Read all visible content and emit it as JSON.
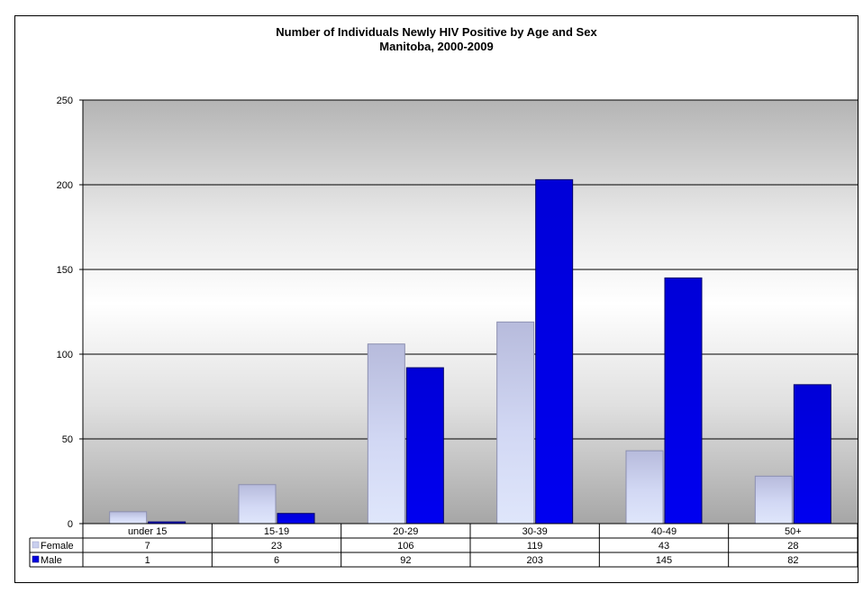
{
  "chart_data": {
    "type": "bar",
    "title": "Number of Individuals  Newly HIV Positive by Age and Sex",
    "subtitle": "Manitoba, 2000-2009",
    "categories": [
      "under 15",
      "15-19",
      "20-29",
      "30-39",
      "40-49",
      "50+"
    ],
    "series": [
      {
        "name": "Female",
        "values": [
          7,
          23,
          106,
          119,
          43,
          28
        ],
        "color": "#c9cfee"
      },
      {
        "name": "Male",
        "values": [
          1,
          6,
          92,
          203,
          145,
          82
        ],
        "color": "#0000e0"
      }
    ],
    "ylim": [
      0,
      250
    ],
    "yticks": [
      "0",
      "50",
      "100",
      "150",
      "200",
      "250"
    ],
    "grid": true,
    "legend": "data-table"
  }
}
